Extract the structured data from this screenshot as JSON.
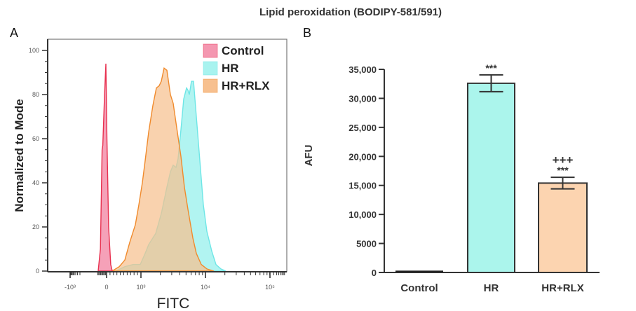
{
  "title": "Lipid peroxidation (BODIPY-581/591)",
  "chart_data": [
    {
      "panel": "A",
      "type": "area",
      "xlabel": "FITC",
      "ylabel": "Normalized to Mode",
      "x_scale": "logicle",
      "x_ticks": [
        -1000,
        0,
        1000,
        10000,
        100000
      ],
      "x_tick_labels": [
        "-10³",
        "0",
        "10³",
        "10⁴",
        "10⁵"
      ],
      "ylim": [
        0,
        100
      ],
      "y_ticks": [
        0,
        20,
        40,
        60,
        80,
        100
      ],
      "legend_position": "top-right",
      "series": [
        {
          "name": "HR",
          "fill": "#a8f3ef",
          "stroke": "#6ee6e6",
          "points": [
            [
              265,
              0
            ],
            [
              531,
              2
            ],
            [
              776,
              3
            ],
            [
              980,
              3
            ],
            [
              1162,
              8
            ],
            [
              1317,
              12
            ],
            [
              1692,
              17
            ],
            [
              2067,
              26
            ],
            [
              2526,
              38
            ],
            [
              2861,
              45
            ],
            [
              3162,
              48
            ],
            [
              3496,
              47
            ],
            [
              3768,
              51
            ],
            [
              4164,
              64
            ],
            [
              4603,
              78
            ],
            [
              5088,
              83
            ],
            [
              5350,
              82
            ],
            [
              5623,
              80
            ],
            [
              6062,
              86
            ],
            [
              6536,
              86
            ],
            [
              7223,
              70
            ],
            [
              8185,
              50
            ],
            [
              9278,
              30
            ],
            [
              10510,
              18
            ],
            [
              12530,
              9
            ],
            [
              14560,
              3
            ],
            [
              17340,
              1
            ],
            [
              20650,
              0
            ]
          ]
        },
        {
          "name": "HR+RLX",
          "fill": "#f7c08f",
          "stroke": "#f08a2c",
          "points": [
            [
              160,
              0
            ],
            [
              367,
              2
            ],
            [
              531,
              5
            ],
            [
              673,
              13
            ],
            [
              735,
              16
            ],
            [
              837,
              21
            ],
            [
              939,
              30
            ],
            [
              1051,
              40
            ],
            [
              1162,
              50
            ],
            [
              1317,
              63
            ],
            [
              1530,
              75
            ],
            [
              1734,
              83
            ],
            [
              1918,
              84
            ],
            [
              2067,
              86
            ],
            [
              2285,
              92
            ],
            [
              2526,
              91
            ],
            [
              2861,
              80
            ],
            [
              3162,
              76
            ],
            [
              3583,
              65
            ],
            [
              4164,
              52
            ],
            [
              4720,
              38
            ],
            [
              5350,
              28
            ],
            [
              6372,
              15
            ],
            [
              7223,
              8
            ],
            [
              8606,
              3
            ],
            [
              10510,
              1
            ],
            [
              13500,
              0
            ]
          ]
        },
        {
          "name": "Control",
          "fill": "#f497b0",
          "stroke": "#e8304f",
          "points": [
            [
              -245,
              0
            ],
            [
              -180,
              10
            ],
            [
              -130,
              55
            ],
            [
              -110,
              57
            ],
            [
              -60,
              80
            ],
            [
              -20,
              94
            ],
            [
              10,
              60
            ],
            [
              60,
              20
            ],
            [
              120,
              3
            ],
            [
              165,
              0
            ]
          ]
        }
      ]
    },
    {
      "panel": "B",
      "type": "bar",
      "ylabel": "AFU",
      "categories": [
        "Control",
        "HR",
        "HR+RLX"
      ],
      "values": [
        200,
        32600,
        15400
      ],
      "error": [
        0,
        1450,
        1000
      ],
      "colors": [
        "#222222",
        "#abf5ec",
        "#fcd4b0"
      ],
      "annotations": [
        [],
        [
          "***"
        ],
        [
          "+++",
          "***"
        ]
      ],
      "ylim": [
        0,
        35000
      ],
      "y_ticks": [
        0,
        5000,
        10000,
        15000,
        20000,
        25000,
        30000,
        35000
      ],
      "y_tick_labels": [
        "0",
        "5000",
        "10,000",
        "15,000",
        "20,000",
        "25,000",
        "30,000",
        "35,000"
      ]
    }
  ],
  "panel_labels": [
    "A",
    "B"
  ]
}
